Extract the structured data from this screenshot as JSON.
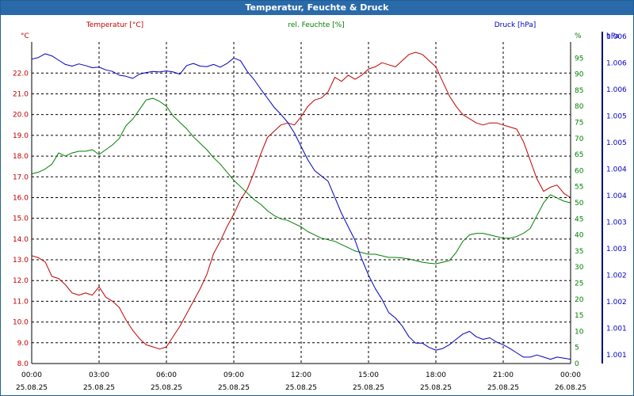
{
  "window": {
    "title": "Temperatur, Feuchte & Druck"
  },
  "colors": {
    "temperature": "#c00000",
    "humidity": "#008000",
    "pressure": "#0000c0",
    "grid": "#000000"
  },
  "chart_data": {
    "type": "line",
    "title": "Temperatur, Feuchte & Druck",
    "x_ticks": [
      {
        "time": "00:00",
        "date": "25.08.25"
      },
      {
        "time": "03:00",
        "date": "25.08.25"
      },
      {
        "time": "06:00",
        "date": "25.08.25"
      },
      {
        "time": "09:00",
        "date": "25.08.25"
      },
      {
        "time": "12:00",
        "date": "25.08.25"
      },
      {
        "time": "15:00",
        "date": "25.08.25"
      },
      {
        "time": "18:00",
        "date": "25.08.25"
      },
      {
        "time": "21:00",
        "date": "25.08.25"
      },
      {
        "time": "00:00",
        "date": "26.08.25"
      }
    ],
    "xlim": [
      0,
      24
    ],
    "axes": {
      "temperature": {
        "label": "Temperatur [°C]",
        "unit": "°C",
        "ylim": [
          8.0,
          23.5
        ],
        "ticks": [
          "8.0",
          "9.0",
          "10.0",
          "11.0",
          "12.0",
          "13.0",
          "14.0",
          "15.0",
          "16.0",
          "17.0",
          "18.0",
          "19.0",
          "20.0",
          "21.0",
          "22.0"
        ]
      },
      "humidity": {
        "label": "rel. Feuchte [%]",
        "unit": "%",
        "ylim": [
          0,
          100
        ],
        "ticks": [
          "0",
          "5",
          "10",
          "15",
          "20",
          "25",
          "30",
          "35",
          "40",
          "45",
          "50",
          "55",
          "60",
          "65",
          "70",
          "75",
          "80",
          "85",
          "90",
          "95"
        ]
      },
      "pressure": {
        "label": "Druck [hPa]",
        "unit": "hPa",
        "ylim": [
          1000.5,
          1006.5
        ],
        "ticks": [
          "1.001",
          "1.001",
          "1.002",
          "1.002",
          "1.003",
          "1.003",
          "1.004",
          "1.004",
          "1.005",
          "1.005",
          "1.006",
          "1.006",
          "1.006"
        ]
      }
    },
    "series": [
      {
        "name": "Temperatur",
        "axis": "temperature",
        "x": [
          0,
          0.3,
          0.6,
          0.9,
          1.2,
          1.5,
          1.8,
          2.1,
          2.4,
          2.7,
          3.0,
          3.3,
          3.6,
          3.9,
          4.2,
          4.5,
          4.8,
          5.1,
          5.4,
          5.7,
          6.0,
          6.3,
          6.6,
          6.9,
          7.2,
          7.5,
          7.8,
          8.1,
          8.4,
          8.7,
          9.0,
          9.3,
          9.6,
          9.9,
          10.2,
          10.5,
          10.8,
          11.1,
          11.4,
          11.7,
          12.0,
          12.3,
          12.6,
          12.9,
          13.2,
          13.5,
          13.8,
          14.1,
          14.4,
          14.7,
          15.0,
          15.3,
          15.6,
          15.9,
          16.2,
          16.5,
          16.8,
          17.1,
          17.4,
          17.7,
          18.0,
          18.3,
          18.6,
          18.9,
          19.2,
          19.5,
          19.8,
          20.1,
          20.4,
          20.7,
          21.0,
          21.3,
          21.6,
          21.9,
          22.2,
          22.5,
          22.8,
          23.1,
          23.4,
          23.7,
          24.0
        ],
        "values": [
          13.2,
          13.1,
          12.9,
          12.2,
          12.1,
          11.8,
          11.4,
          11.3,
          11.4,
          11.3,
          11.7,
          11.2,
          11.0,
          10.7,
          10.1,
          9.6,
          9.2,
          8.9,
          8.8,
          8.7,
          8.8,
          9.3,
          9.8,
          10.4,
          11.0,
          11.6,
          12.3,
          13.3,
          13.9,
          14.6,
          15.2,
          15.9,
          16.4,
          17.2,
          18.1,
          18.9,
          19.2,
          19.5,
          19.6,
          19.5,
          19.9,
          20.4,
          20.7,
          20.8,
          21.1,
          21.8,
          21.6,
          21.9,
          21.7,
          21.9,
          22.2,
          22.3,
          22.5,
          22.4,
          22.3,
          22.6,
          22.9,
          23.0,
          22.9,
          22.6,
          22.3,
          21.6,
          20.9,
          20.4,
          20.0,
          19.8,
          19.6,
          19.5,
          19.6,
          19.6,
          19.5,
          19.4,
          19.3,
          18.7,
          17.8,
          16.9,
          16.3,
          16.5,
          16.6,
          16.2,
          16.0
        ]
      },
      {
        "name": "rel. Feuchte",
        "axis": "humidity",
        "x": [
          0,
          0.3,
          0.6,
          0.9,
          1.2,
          1.5,
          1.8,
          2.1,
          2.4,
          2.7,
          3.0,
          3.3,
          3.6,
          3.9,
          4.2,
          4.5,
          4.8,
          5.1,
          5.4,
          5.7,
          6.0,
          6.3,
          6.6,
          6.9,
          7.2,
          7.5,
          7.8,
          8.1,
          8.4,
          8.7,
          9.0,
          9.3,
          9.6,
          9.9,
          10.2,
          10.5,
          10.8,
          11.1,
          11.4,
          11.7,
          12.0,
          12.3,
          12.6,
          12.9,
          13.2,
          13.5,
          13.8,
          14.1,
          14.4,
          14.7,
          15.0,
          15.3,
          15.6,
          15.9,
          16.2,
          16.5,
          16.8,
          17.1,
          17.4,
          17.7,
          18.0,
          18.3,
          18.6,
          18.9,
          19.2,
          19.5,
          19.8,
          20.1,
          20.4,
          20.7,
          21.0,
          21.3,
          21.6,
          21.9,
          22.2,
          22.5,
          22.8,
          23.1,
          23.4,
          23.7,
          24.0
        ],
        "values": [
          59.0,
          59.5,
          60.5,
          62.0,
          65.5,
          64.5,
          65.5,
          66.0,
          66.0,
          66.5,
          65.0,
          66.5,
          68.0,
          70.0,
          74.0,
          76.0,
          79.0,
          82.0,
          82.5,
          81.5,
          80.0,
          77.0,
          75.0,
          73.0,
          70.5,
          68.5,
          66.5,
          64.0,
          62.0,
          59.5,
          57.0,
          55.0,
          53.0,
          51.0,
          49.5,
          47.5,
          46.0,
          45.0,
          44.5,
          43.5,
          42.5,
          41.0,
          40.0,
          39.0,
          38.5,
          38.0,
          37.0,
          36.0,
          35.0,
          34.5,
          34.0,
          34.0,
          33.5,
          33.0,
          33.0,
          32.8,
          32.5,
          32.0,
          31.5,
          31.2,
          31.0,
          31.5,
          32.0,
          34.5,
          38.0,
          40.0,
          40.5,
          40.5,
          40.0,
          39.5,
          39.0,
          39.0,
          39.5,
          40.5,
          42.0,
          46.0,
          50.0,
          52.5,
          51.5,
          50.5,
          50.0
        ]
      },
      {
        "name": "Druck",
        "axis": "pressure",
        "x": [
          0,
          0.3,
          0.6,
          0.9,
          1.2,
          1.5,
          1.8,
          2.1,
          2.4,
          2.7,
          3.0,
          3.3,
          3.6,
          3.9,
          4.2,
          4.5,
          4.8,
          5.1,
          5.4,
          5.7,
          6.0,
          6.3,
          6.6,
          6.9,
          7.2,
          7.5,
          7.8,
          8.1,
          8.4,
          8.7,
          9.0,
          9.3,
          9.6,
          9.9,
          10.2,
          10.5,
          10.8,
          11.1,
          11.4,
          11.7,
          12.0,
          12.3,
          12.6,
          12.9,
          13.2,
          13.5,
          13.8,
          14.1,
          14.4,
          14.7,
          15.0,
          15.3,
          15.6,
          15.9,
          16.2,
          16.5,
          16.8,
          17.1,
          17.4,
          17.7,
          18.0,
          18.3,
          18.6,
          18.9,
          19.2,
          19.5,
          19.8,
          20.1,
          20.4,
          20.7,
          21.0,
          21.3,
          21.6,
          21.9,
          22.2,
          22.5,
          22.8,
          23.1,
          23.4,
          23.7,
          24.0
        ],
        "values": [
          1006.18,
          1006.21,
          1006.28,
          1006.24,
          1006.16,
          1006.08,
          1006.05,
          1006.09,
          1006.06,
          1006.02,
          1006.03,
          1005.98,
          1005.95,
          1005.88,
          1005.86,
          1005.82,
          1005.9,
          1005.93,
          1005.95,
          1005.94,
          1005.96,
          1005.94,
          1005.9,
          1006.06,
          1006.1,
          1006.05,
          1006.04,
          1006.08,
          1006.03,
          1006.1,
          1006.2,
          1006.15,
          1005.95,
          1005.8,
          1005.62,
          1005.45,
          1005.28,
          1005.15,
          1005.0,
          1004.8,
          1004.55,
          1004.3,
          1004.1,
          1004.0,
          1003.9,
          1003.6,
          1003.3,
          1003.05,
          1002.8,
          1002.45,
          1002.15,
          1001.9,
          1001.7,
          1001.45,
          1001.35,
          1001.2,
          1001.0,
          1000.88,
          1000.88,
          1000.8,
          1000.75,
          1000.78,
          1000.85,
          1000.95,
          1001.05,
          1001.1,
          1001.0,
          1000.95,
          1000.98,
          1000.9,
          1000.85,
          1000.78,
          1000.7,
          1000.62,
          1000.62,
          1000.66,
          1000.62,
          1000.58,
          1000.62,
          1000.6,
          1000.58
        ]
      }
    ]
  }
}
